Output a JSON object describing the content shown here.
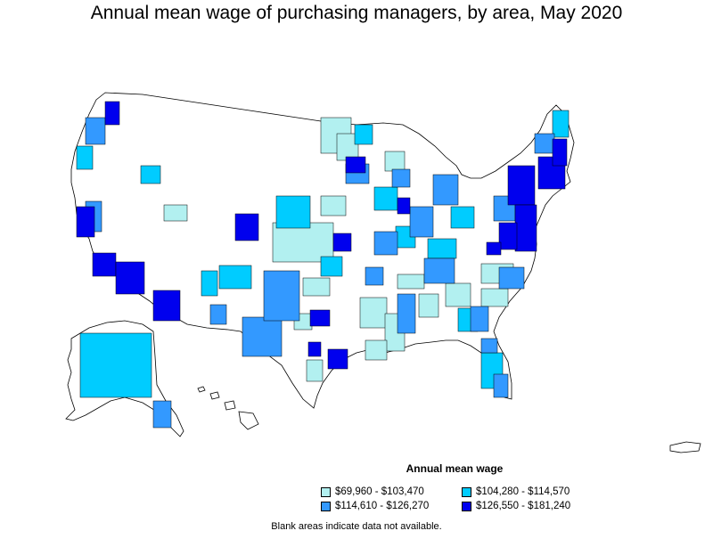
{
  "title": "Annual mean wage of purchasing managers, by area, May 2020",
  "legend": {
    "title": "Annual mean wage",
    "items": [
      {
        "label": "$69,960 - $103,470",
        "color": "#b2f0f0"
      },
      {
        "label": "$104,280 - $114,570",
        "color": "#00ccff"
      },
      {
        "label": "$114,610 - $126,270",
        "color": "#3399ff"
      },
      {
        "label": "$126,550 - $181,240",
        "color": "#0000ee"
      }
    ]
  },
  "footnote": "Blank areas indicate data not available.",
  "colors": {
    "border": "#000000",
    "blank": "#ffffff"
  }
}
